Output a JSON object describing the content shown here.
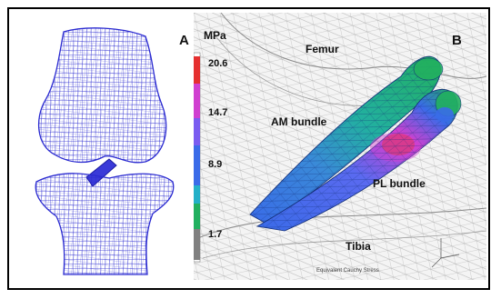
{
  "panels": {
    "a": {
      "label": "A"
    },
    "b": {
      "label": "B"
    }
  },
  "colorbar": {
    "unit": "MPa",
    "ticks": [
      "20.6",
      "14.7",
      "8.9",
      "1.7"
    ],
    "values": [
      20.6,
      14.7,
      8.9,
      1.7
    ],
    "colors": [
      "#ffffff",
      "#e53030",
      "#d040d0",
      "#7a5cf0",
      "#3a6be8",
      "#24b0c8",
      "#22b060",
      "#20a030",
      "#808080"
    ]
  },
  "annotations": {
    "femur": "Femur",
    "am_bundle": "AM bundle",
    "pl_bundle": "PL bundle",
    "tibia": "Tibia",
    "caption": "Equivalent Cauchy Stress"
  },
  "colors": {
    "mesh_blue": "#2a2ad0",
    "ligament_green": "#22b060",
    "ligament_blue": "#3a6be8",
    "stress_red": "#e53030",
    "stress_magenta": "#d040d0"
  }
}
